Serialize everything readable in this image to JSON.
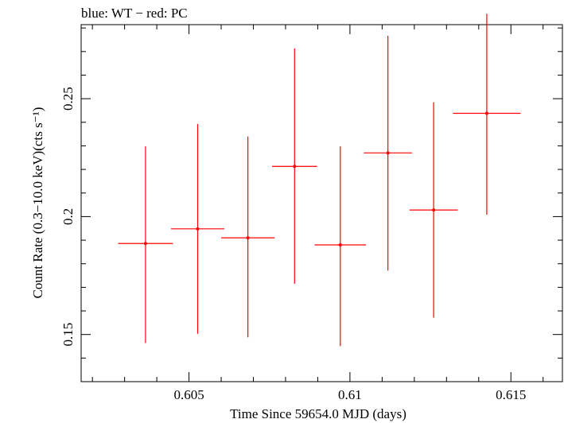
{
  "chart_data": {
    "type": "scatter",
    "title": "blue: WT − red: PC",
    "xlabel": "Time Since 59654.0 MJD (days)",
    "ylabel": "Count Rate (0.3−10.0 keV)(cts s⁻¹)",
    "xlim": [
      0.60165,
      0.6166
    ],
    "ylim": [
      0.13,
      0.2814
    ],
    "x_ticks": [
      0.605,
      0.61,
      0.615
    ],
    "x_tick_labels": [
      "0.605",
      "0.61",
      "0.615"
    ],
    "y_ticks": [
      0.15,
      0.2,
      0.25
    ],
    "y_tick_labels": [
      "0.15",
      "0.2",
      "0.25"
    ],
    "grid": false,
    "series": [
      {
        "name": "PC",
        "color": "#ff0000",
        "points": [
          {
            "x": 0.60365,
            "xerr": 0.00085,
            "y": 0.1886,
            "ylo": 0.1464,
            "yhi": 0.2298
          },
          {
            "x": 0.60527,
            "xerr": 0.00083,
            "y": 0.1948,
            "ylo": 0.1503,
            "yhi": 0.2393
          },
          {
            "x": 0.60683,
            "xerr": 0.00083,
            "y": 0.191,
            "ylo": 0.1488,
            "yhi": 0.234
          },
          {
            "x": 0.60828,
            "xerr": 0.0007,
            "y": 0.2213,
            "ylo": 0.1715,
            "yhi": 0.2713
          },
          {
            "x": 0.6097,
            "xerr": 0.0008,
            "y": 0.188,
            "ylo": 0.1451,
            "yhi": 0.2298
          },
          {
            "x": 0.61118,
            "xerr": 0.00075,
            "y": 0.227,
            "ylo": 0.1771,
            "yhi": 0.2767
          },
          {
            "x": 0.6126,
            "xerr": 0.00075,
            "y": 0.2028,
            "ylo": 0.1571,
            "yhi": 0.2485
          },
          {
            "x": 0.61425,
            "xerr": 0.00105,
            "y": 0.2438,
            "ylo": 0.2008,
            "yhi": 0.286
          }
        ]
      }
    ]
  }
}
